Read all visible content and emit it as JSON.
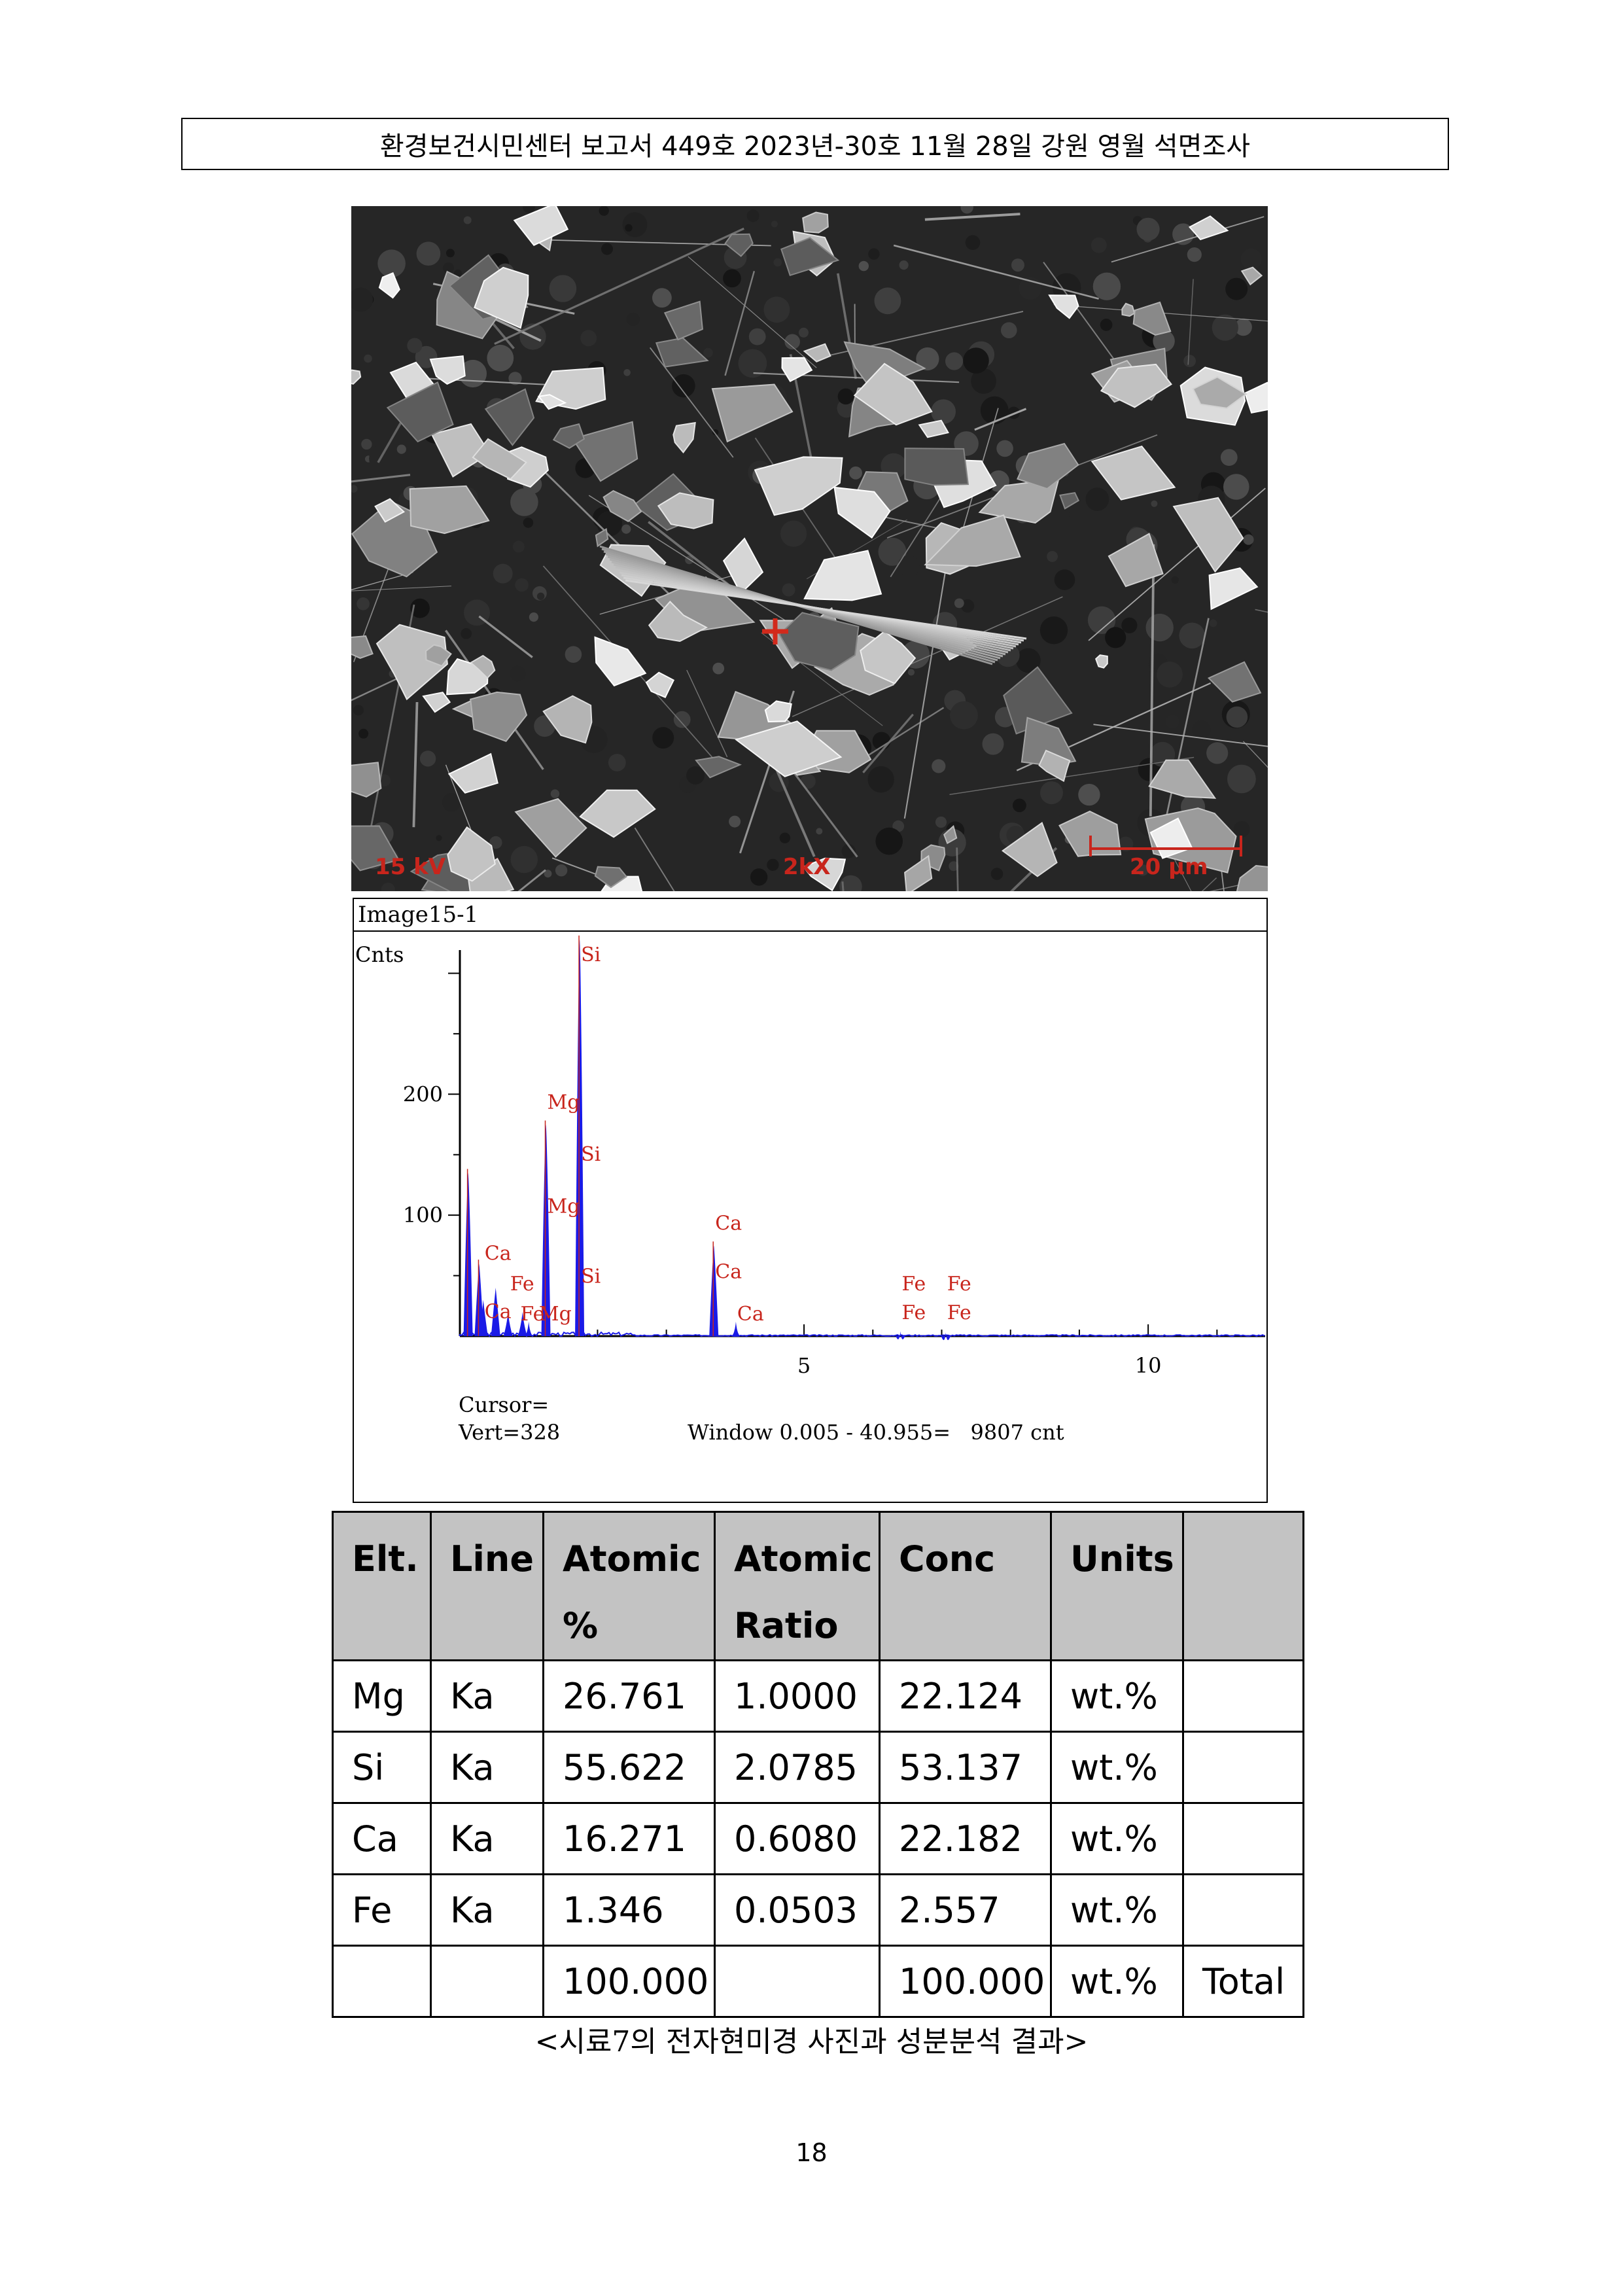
{
  "header": {
    "text": "환경보건시민센터 보고서 449호 2023년-30호 11월 28일 강원 영월 석면조사"
  },
  "sem_image": {
    "voltage_label": "15 kV",
    "magnification_label": "2kX",
    "scale_label": "20 μm",
    "marker_color": "#d22a1c"
  },
  "eds_spectrum": {
    "title": "Image15-1",
    "y_axis_label": "Cnts",
    "cursor_label": "Cursor=",
    "vert_label": "Vert=328",
    "window_label": "Window 0.005 - 40.955=   9807 cnt",
    "peak_color": "#1a1ae6",
    "label_color": "#c8251c"
  },
  "chart_data": {
    "type": "line",
    "title": "Image15-1",
    "ylabel": "Cnts",
    "x_ticks": [
      "5",
      "10"
    ],
    "y_ticks": [
      "100",
      "200"
    ],
    "xlim": [
      0,
      11.7
    ],
    "ylim": [
      0,
      330
    ],
    "peaks": [
      {
        "x": 0.12,
        "y": 135
      },
      {
        "x": 0.28,
        "y": 60
      },
      {
        "x": 0.34,
        "y": 30
      },
      {
        "x": 0.52,
        "y": 40
      },
      {
        "x": 0.7,
        "y": 20
      },
      {
        "x": 0.91,
        "y": 20
      },
      {
        "x": 1.0,
        "y": 12
      },
      {
        "x": 1.25,
        "y": 175
      },
      {
        "x": 1.74,
        "y": 328
      },
      {
        "x": 3.69,
        "y": 75
      },
      {
        "x": 4.01,
        "y": 12
      },
      {
        "x": 6.4,
        "y": 4
      },
      {
        "x": 7.06,
        "y": 3
      }
    ],
    "element_labels": [
      {
        "text": "Si",
        "x": 1.74,
        "y": 310
      },
      {
        "text": "Mg",
        "x": 1.25,
        "y": 188
      },
      {
        "text": "Si",
        "x": 1.74,
        "y": 145
      },
      {
        "text": "Mg",
        "x": 1.25,
        "y": 102
      },
      {
        "text": "Ca",
        "x": 0.34,
        "y": 63
      },
      {
        "text": "Si",
        "x": 1.74,
        "y": 44
      },
      {
        "text": "Fe",
        "x": 0.71,
        "y": 38
      },
      {
        "text": "Ca",
        "x": 0.34,
        "y": 15
      },
      {
        "text": "Fe",
        "x": 0.86,
        "y": 13
      },
      {
        "text": "Mg",
        "x": 1.13,
        "y": 13
      },
      {
        "text": "Ca",
        "x": 3.69,
        "y": 88
      },
      {
        "text": "Ca",
        "x": 3.69,
        "y": 48
      },
      {
        "text": "Ca",
        "x": 4.01,
        "y": 13
      },
      {
        "text": "Fe",
        "x": 6.4,
        "y": 38
      },
      {
        "text": "Fe",
        "x": 7.06,
        "y": 38
      },
      {
        "text": "Fe",
        "x": 6.4,
        "y": 14
      },
      {
        "text": "Fe",
        "x": 7.06,
        "y": 14
      }
    ]
  },
  "table": {
    "headers": [
      {
        "line1": "Elt.",
        "line2": ""
      },
      {
        "line1": "Line",
        "line2": ""
      },
      {
        "line1": "Atomic",
        "line2": "%"
      },
      {
        "line1": "Atomic",
        "line2": "Ratio"
      },
      {
        "line1": "Conc",
        "line2": ""
      },
      {
        "line1": "Units",
        "line2": ""
      },
      {
        "line1": "",
        "line2": ""
      }
    ],
    "rows": [
      [
        "Mg",
        "Ka",
        "26.761",
        "1.0000",
        "22.124",
        "wt.%",
        ""
      ],
      [
        "Si",
        "Ka",
        "55.622",
        "2.0785",
        "53.137",
        "wt.%",
        ""
      ],
      [
        "Ca",
        "Ka",
        "16.271",
        "0.6080",
        "22.182",
        "wt.%",
        ""
      ],
      [
        "Fe",
        "Ka",
        "1.346",
        "0.0503",
        "2.557",
        "wt.%",
        ""
      ],
      [
        "",
        "",
        "100.000",
        "",
        "100.000",
        "wt.%",
        "Total"
      ]
    ]
  },
  "caption": "<시료7의 전자현미경 사진과 성분분석 결과>",
  "page_number": "18"
}
